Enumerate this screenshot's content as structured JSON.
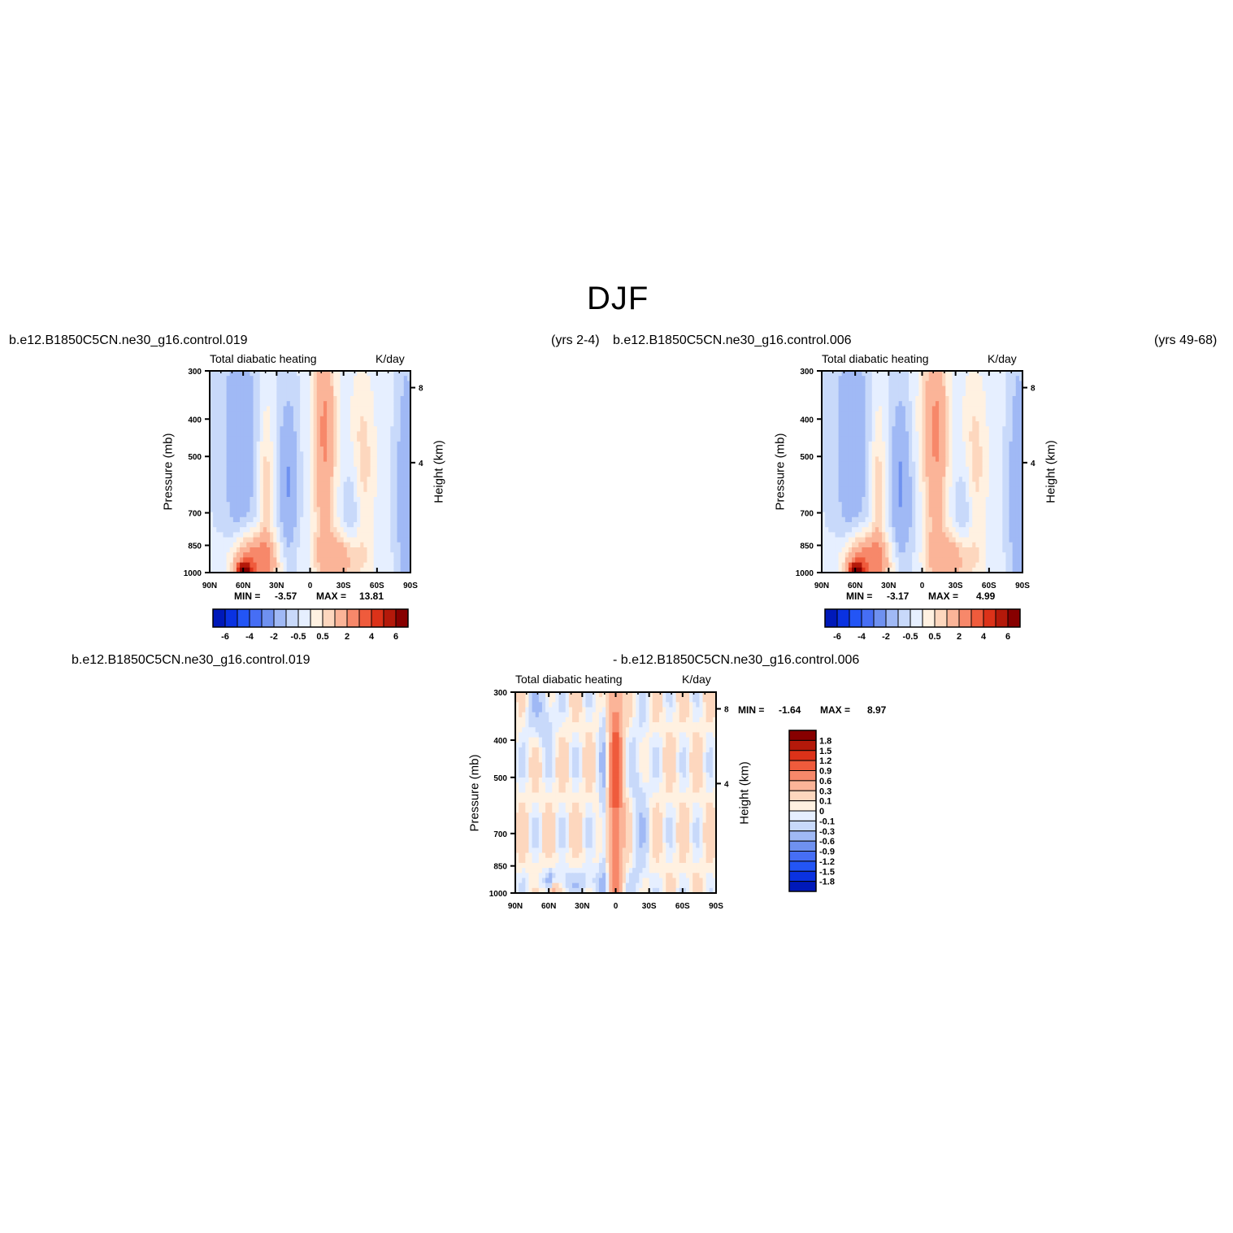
{
  "figure": {
    "title": "DJF",
    "case_a_name": "b.e12.B1850C5CN.ne30_g16.control.019",
    "case_a_years": "(yrs 2-4)",
    "case_b_name": "b.e12.B1850C5CN.ne30_g16.control.006",
    "case_b_years": "(yrs 49-68)",
    "diff_left": "b.e12.B1850C5CN.ne30_g16.control.019",
    "diff_right": "- b.e12.B1850C5CN.ne30_g16.control.006"
  },
  "chart_data": [
    {
      "id": "panel-case-a",
      "type": "heatmap",
      "variable": "Total diabatic heating",
      "units": "K/day",
      "xlabel": "",
      "ylabel": "Pressure (mb)",
      "y2label": "Height (km)",
      "x_ticks": [
        "90N",
        "60N",
        "30N",
        "0",
        "30S",
        "60S",
        "90S"
      ],
      "x_range": [
        90,
        -90
      ],
      "y_ticks": [
        "300",
        "400",
        "500",
        "700",
        "850",
        "1000"
      ],
      "y_range_mb": [
        1000,
        300
      ],
      "y2_ticks": [
        "8",
        "4"
      ],
      "min_label": "MIN =",
      "min": "-3.57",
      "max_label": "MAX =",
      "max": "13.81",
      "contour_levels": [
        -6,
        -5,
        -4,
        -3,
        -2,
        -1,
        -0.5,
        0,
        0.5,
        1,
        2,
        3,
        4,
        5,
        6
      ],
      "colorbar_labels": [
        "-6",
        "-4",
        "-2",
        "-0.5",
        "0.5",
        "2",
        "4",
        "6"
      ]
    },
    {
      "id": "panel-case-b",
      "type": "heatmap",
      "variable": "Total diabatic heating",
      "units": "K/day",
      "xlabel": "",
      "ylabel": "Pressure (mb)",
      "y2label": "Height (km)",
      "x_ticks": [
        "90N",
        "60N",
        "30N",
        "0",
        "30S",
        "60S",
        "90S"
      ],
      "x_range": [
        90,
        -90
      ],
      "y_ticks": [
        "300",
        "400",
        "500",
        "700",
        "850",
        "1000"
      ],
      "y_range_mb": [
        1000,
        300
      ],
      "y2_ticks": [
        "8",
        "4"
      ],
      "min_label": "MIN =",
      "min": "-3.17",
      "max_label": "MAX =",
      "max": "4.99",
      "contour_levels": [
        -6,
        -5,
        -4,
        -3,
        -2,
        -1,
        -0.5,
        0,
        0.5,
        1,
        2,
        3,
        4,
        5,
        6
      ],
      "colorbar_labels": [
        "-6",
        "-4",
        "-2",
        "-0.5",
        "0.5",
        "2",
        "4",
        "6"
      ]
    },
    {
      "id": "panel-diff",
      "type": "heatmap",
      "variable": "Total diabatic heating",
      "units": "K/day",
      "xlabel": "",
      "ylabel": "Pressure (mb)",
      "y2label": "Height (km)",
      "x_ticks": [
        "90N",
        "60N",
        "30N",
        "0",
        "30S",
        "60S",
        "90S"
      ],
      "x_range": [
        90,
        -90
      ],
      "y_ticks": [
        "300",
        "400",
        "500",
        "700",
        "850",
        "1000"
      ],
      "y_range_mb": [
        1000,
        300
      ],
      "y2_ticks": [
        "8",
        "4"
      ],
      "min_label": "MIN =",
      "min": "-1.64",
      "max_label": "MAX =",
      "max": "8.97",
      "contour_levels": [
        -1.8,
        -1.5,
        -1.2,
        -0.9,
        -0.6,
        -0.3,
        -0.1,
        0,
        0.1,
        0.3,
        0.6,
        0.9,
        1.2,
        1.5,
        1.8
      ],
      "colorbar_labels": [
        "1.8",
        "1.5",
        "1.2",
        "0.9",
        "0.6",
        "0.3",
        "0.1",
        "0",
        "-0.1",
        "-0.3",
        "-0.6",
        "-0.9",
        "-1.2",
        "-1.5",
        "-1.8"
      ]
    }
  ],
  "colors": {
    "palette": [
      "#00006e",
      "#0019b9",
      "#0a32e1",
      "#2355f5",
      "#466ef5",
      "#6f91f0",
      "#a0b9f5",
      "#c8d9fa",
      "#e6efff",
      "#fff1e1",
      "#fdd7be",
      "#fbb498",
      "#f7886a",
      "#ef5b3c",
      "#dc3219",
      "#b4190a",
      "#870000"
    ]
  }
}
